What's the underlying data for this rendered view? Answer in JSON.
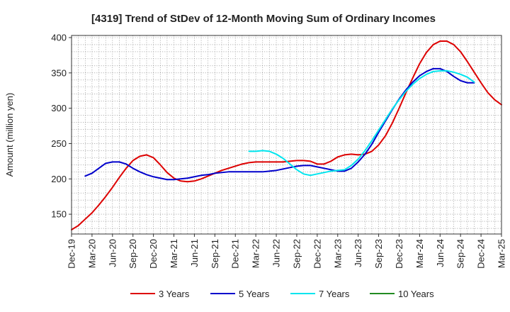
{
  "chart_data": {
    "type": "line",
    "title": "[4319]  Trend of StDev of 12-Month Moving Sum of Ordinary Incomes",
    "xlabel": "",
    "ylabel": "Amount (million yen)",
    "ylim": [
      122,
      403
    ],
    "yticks": [
      150,
      200,
      250,
      300,
      350,
      400
    ],
    "x_start": "Dec-19",
    "x_end": "Mar-25",
    "x_tick_labels": [
      "Dec-19",
      "Mar-20",
      "Jun-20",
      "Sep-20",
      "Dec-20",
      "Mar-21",
      "Jun-21",
      "Sep-21",
      "Dec-21",
      "Mar-22",
      "Jun-22",
      "Sep-22",
      "Dec-22",
      "Mar-23",
      "Jun-23",
      "Sep-23",
      "Dec-23",
      "Mar-24",
      "Jun-24",
      "Sep-24",
      "Dec-24",
      "Mar-25"
    ],
    "grid": true,
    "legend_position": "bottom",
    "series": [
      {
        "name": "3 Years",
        "color": "#dd0000",
        "start_index": 0,
        "values": [
          128,
          134,
          143,
          152,
          163,
          175,
          188,
          202,
          215,
          226,
          232,
          234,
          230,
          220,
          209,
          201,
          197,
          196,
          197,
          200,
          204,
          208,
          212,
          215,
          218,
          221,
          223,
          224,
          224,
          224,
          224,
          224,
          225,
          226,
          226,
          225,
          221,
          221,
          225,
          231,
          234,
          235,
          234,
          235,
          239,
          248,
          261,
          279,
          300,
          322,
          343,
          363,
          379,
          390,
          395,
          395,
          390,
          380,
          366,
          351,
          336,
          322,
          312,
          305
        ],
        "labels": []
      },
      {
        "name": "5 Years",
        "color": "#0000cc",
        "start_index": 2,
        "values": [
          204,
          208,
          215,
          222,
          224,
          224,
          221,
          215,
          210,
          206,
          203,
          201,
          199,
          199,
          200,
          201,
          203,
          205,
          206,
          208,
          209,
          210,
          210,
          210,
          210,
          210,
          210,
          211,
          212,
          214,
          216,
          218,
          219,
          219,
          217,
          215,
          213,
          211,
          211,
          215,
          224,
          235,
          249,
          266,
          282,
          298,
          313,
          326,
          337,
          346,
          352,
          356,
          356,
          352,
          345,
          339,
          336,
          336
        ],
        "labels": []
      },
      {
        "name": "7 Years",
        "color": "#00e5ee",
        "start_index": 26,
        "values": [
          239,
          239,
          240,
          239,
          235,
          229,
          221,
          213,
          207,
          205,
          207,
          209,
          211,
          212,
          213,
          219,
          228,
          240,
          254,
          269,
          284,
          299,
          312,
          324,
          334,
          342,
          348,
          352,
          353,
          353,
          351,
          348,
          344,
          337
        ],
        "labels": []
      },
      {
        "name": "10 Years",
        "color": "#228b22",
        "start_index": 0,
        "values": [],
        "labels": []
      }
    ]
  }
}
